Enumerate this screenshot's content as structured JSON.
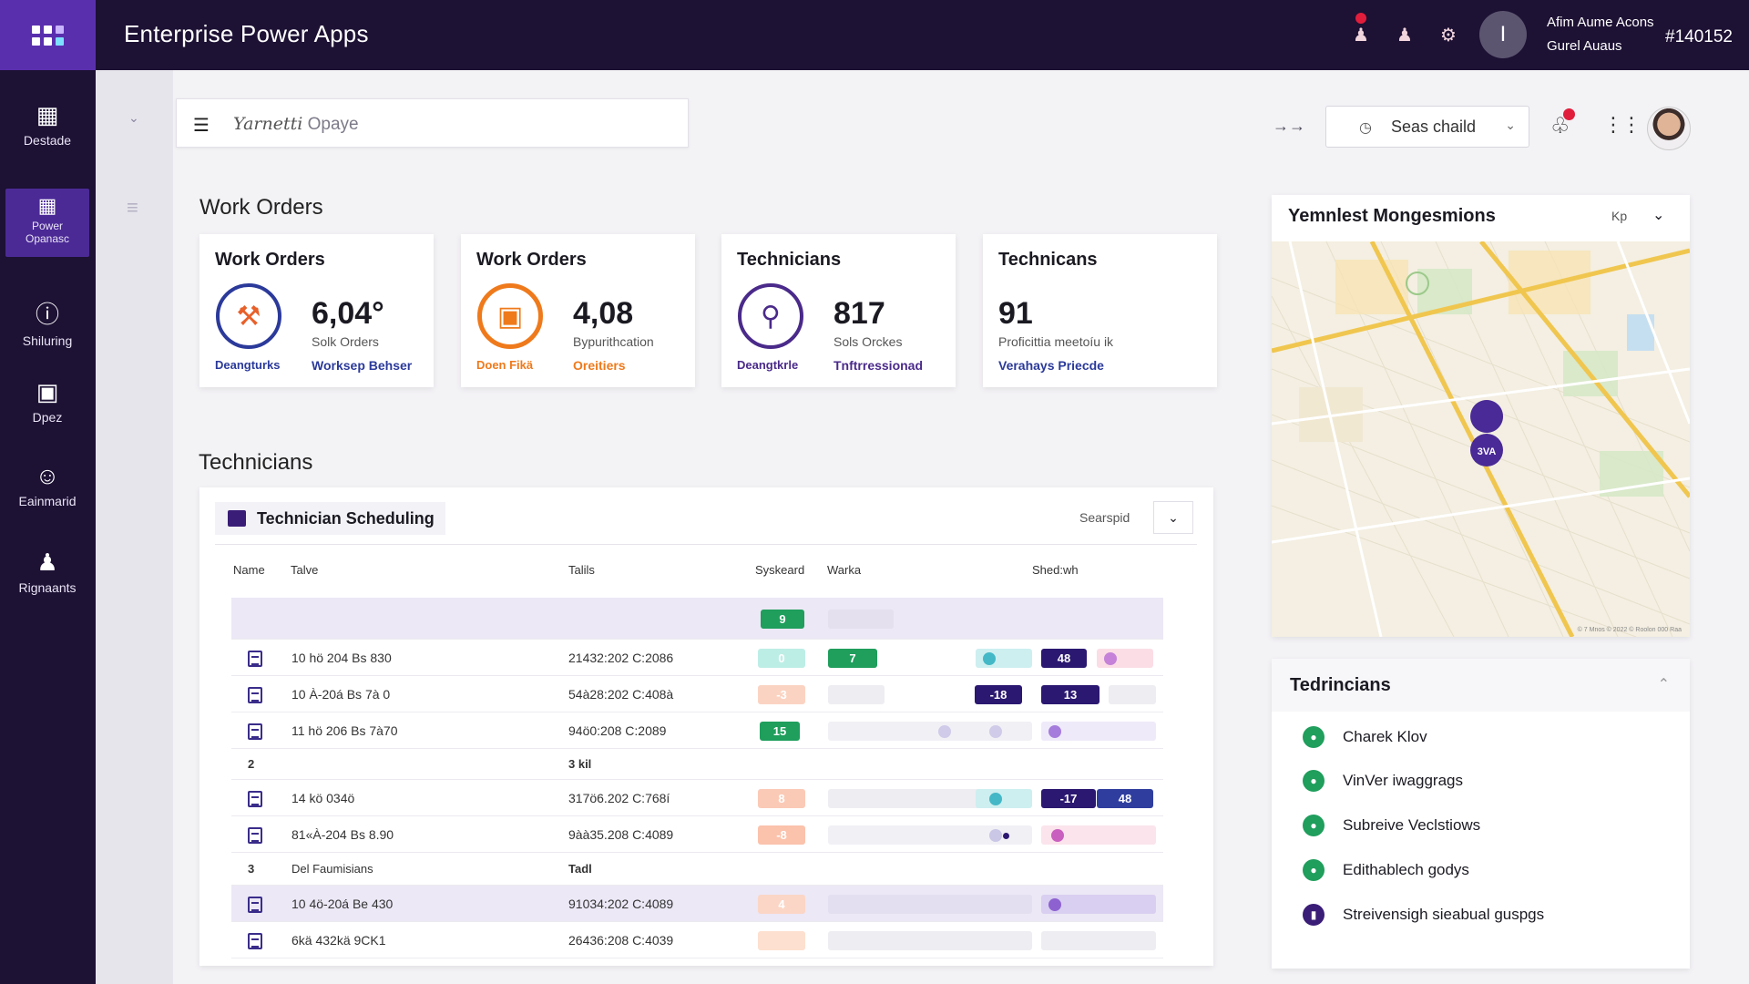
{
  "app": {
    "title": "Enterprise  Power Apps"
  },
  "topbar": {
    "user_line1": "Afim Aume Acons",
    "user_line2": "Gurel Auaus",
    "user_id": "#140152",
    "avatar_initial": "I"
  },
  "rail": {
    "items": [
      {
        "label": "Destade",
        "icon": "grid-icon"
      },
      {
        "label": "Power Opanasc",
        "icon": "apps-icon",
        "active": true
      },
      {
        "label": "Shiluring",
        "icon": "info-icon"
      },
      {
        "label": "Dpez",
        "icon": "dashboard-icon"
      },
      {
        "label": "Eainmarid",
        "icon": "people-icon"
      },
      {
        "label": "Rignaants",
        "icon": "person-icon"
      }
    ]
  },
  "header": {
    "search_prefix": "Yarnetti",
    "search_text": "Opaye",
    "link": "→→",
    "select_value": "Seas chaild"
  },
  "sections": {
    "work_orders": "Work Orders",
    "technicians": "Technicians"
  },
  "kpis": [
    {
      "title": "Work Orders",
      "value": "6,04°",
      "sub": "Solk Orders",
      "link1": "Deangturks",
      "link2": "Worksep Behser"
    },
    {
      "title": "Work Orders",
      "value": "4,08",
      "sub": "Bypurithcation",
      "link1": "Doen Fikä",
      "link2": "Oreitiers"
    },
    {
      "title": "Technicians",
      "value": "817",
      "sub": "Sols Orckes",
      "link1": "Deangtkrle",
      "link2": "Tnftrressionad"
    },
    {
      "title": "Technicans",
      "value": "91",
      "sub": "Proficittia meetoíu ik",
      "link2": "Verahays Priecde"
    }
  ],
  "scheduling": {
    "title": "Technician Scheduling",
    "filter": "Searspid",
    "columns": [
      "Name",
      "Talve",
      "Talils",
      "Syskeard",
      "Warka",
      "Shed:wh"
    ],
    "rows": [
      {
        "type": "header",
        "pill": "9"
      },
      {
        "type": "data",
        "c1": "10 hö 204 Bs 830",
        "c2": "21432:202 C:2086",
        "pill1": "0",
        "pill2": "7",
        "pill3": "48"
      },
      {
        "type": "data",
        "c1": "10 À-20á Bs 7à 0",
        "c2": "54à28:202 C:408à",
        "pill1": "-3",
        "pill3": "-18",
        "pill4": "13"
      },
      {
        "type": "data",
        "c1": "11 hö 206 Bs 7à70",
        "c2": "94ö0:208 C:2089",
        "pill1": "15"
      },
      {
        "type": "group",
        "g1": "2",
        "g3": "3 kil"
      },
      {
        "type": "data",
        "c1": "14 kö 034ö",
        "c2": "317ö6.202 C:768í",
        "pill1": "8",
        "pill3": "-17",
        "pill4": "48"
      },
      {
        "type": "data",
        "c1": "81«À-204 Bs 8.90",
        "c2": "9àà35.208 C:4089",
        "pill1": "-8"
      },
      {
        "type": "group",
        "g1": "3",
        "g2": "Del Faumisians",
        "g3": "Tadl"
      },
      {
        "type": "data",
        "c1": "10 4ö-20á Be 430",
        "c2": "91034:202 C:4089",
        "pill1": "4"
      },
      {
        "type": "data",
        "c1": "6kä 432kä 9CK1",
        "c2": "26436:208 C:4039"
      }
    ]
  },
  "map": {
    "title": "Yemnlest Mongesmions",
    "control": "Kp",
    "marker": "3VA",
    "attribution": "© 7 Mnos © 2022 © Roolon 000 Raa"
  },
  "tech_list": {
    "title": "Tedrincians",
    "items": [
      {
        "name": "Charek Klov",
        "icon": "green"
      },
      {
        "name": "VinVer iwaggrags",
        "icon": "green"
      },
      {
        "name": "Subreive Veclstiows",
        "icon": "green"
      },
      {
        "name": "Edithablech godys",
        "icon": "green"
      },
      {
        "name": "Streivensigh sieabual guspgs",
        "icon": "purple"
      }
    ]
  },
  "colors": {
    "topbar": "#1d1134",
    "accent": "#5a2fae",
    "green": "#1f9e5c",
    "navy": "#3a1d77",
    "orange": "#ef7a1c"
  }
}
